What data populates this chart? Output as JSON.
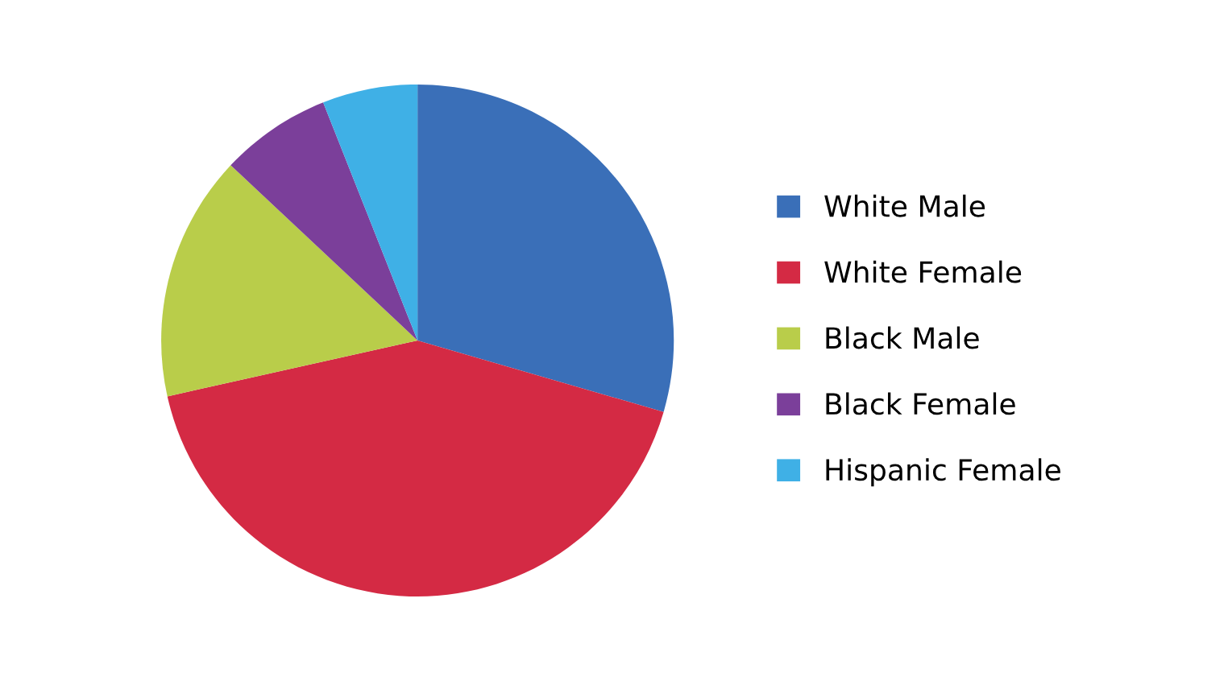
{
  "chart_data": {
    "type": "pie",
    "categories": [
      "White Male",
      "White Female",
      "Black Male",
      "Black Female",
      "Hispanic Female"
    ],
    "values": [
      29.5,
      42,
      15.5,
      7,
      6
    ],
    "colors": [
      "#3a6fb8",
      "#d42a44",
      "#b9cd4a",
      "#7b3f9a",
      "#3fb0e6"
    ],
    "legend": "right"
  }
}
